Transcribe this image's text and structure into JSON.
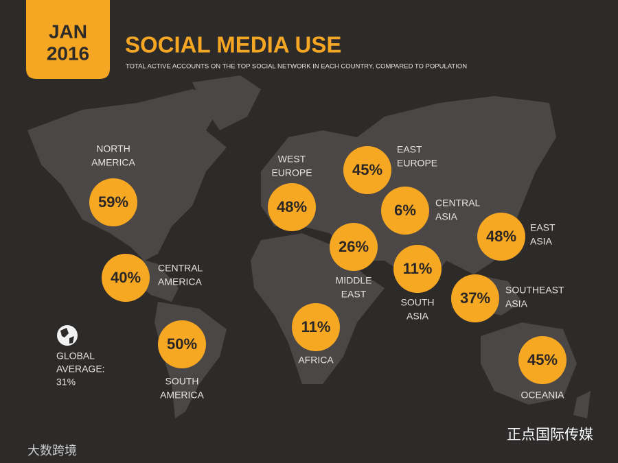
{
  "header": {
    "badge": [
      "JAN",
      "2016"
    ],
    "title": "SOCIAL MEDIA USE",
    "subtitle": "TOTAL ACTIVE ACCOUNTS ON THE TOP SOCIAL NETWORK IN EACH COUNTRY, COMPARED TO POPULATION"
  },
  "regions": [
    {
      "label": [
        "NORTH",
        "AMERICA"
      ],
      "value": "59%"
    },
    {
      "label": [
        "CENTRAL",
        "AMERICA"
      ],
      "value": "40%"
    },
    {
      "label": [
        "SOUTH",
        "AMERICA"
      ],
      "value": "50%"
    },
    {
      "label": [
        "WEST",
        "EUROPE"
      ],
      "value": "48%"
    },
    {
      "label": [
        "EAST",
        "EUROPE"
      ],
      "value": "45%"
    },
    {
      "label": [
        "CENTRAL",
        "ASIA"
      ],
      "value": "6%"
    },
    {
      "label": [
        "MIDDLE",
        "EAST"
      ],
      "value": "26%"
    },
    {
      "label": [
        "AFRICA"
      ],
      "value": "11%"
    },
    {
      "label": [
        "SOUTH",
        "ASIA"
      ],
      "value": "11%"
    },
    {
      "label": [
        "EAST",
        "ASIA"
      ],
      "value": "48%"
    },
    {
      "label": [
        "SOUTHEAST",
        "ASIA"
      ],
      "value": "37%"
    },
    {
      "label": [
        "OCEANIA"
      ],
      "value": "45%"
    }
  ],
  "global_average": [
    "GLOBAL",
    "AVERAGE:",
    "31%"
  ],
  "watermarks": [
    "大数跨境",
    "正点国际传媒"
  ]
}
